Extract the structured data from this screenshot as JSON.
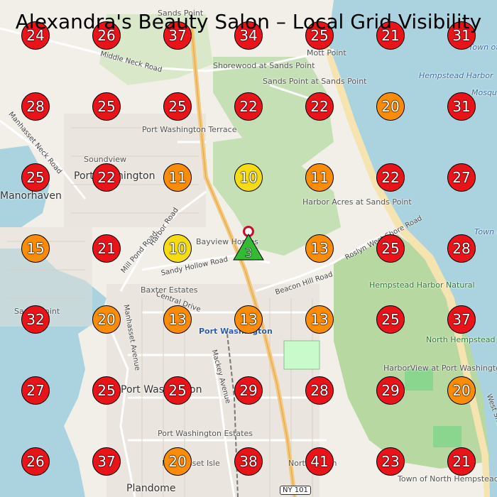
{
  "map": {
    "title": "Alexandra's Beauty Salon – Local Grid Visibility",
    "colors": {
      "red": "#e8141a",
      "orange": "#fa8c0a",
      "yellow": "#f6dc14",
      "green": "#33bb33",
      "water": "#aad3df",
      "land": "#f2efe9",
      "wood": "#add19e"
    },
    "place_labels": [
      "Sands Point",
      "Mott Point",
      "Shorewood at Sands Point",
      "Sands Point at Sands Point",
      "Port Washington Terrace",
      "Soundview",
      "Port Washington",
      "Manorhaven",
      "Harbor Acres at Sands Point",
      "Bayview Homes",
      "Baxter Estates",
      "Port Washington",
      "Port Washington",
      "Port Washington Estates",
      "Manhasset Isle",
      "Plandome",
      "North Salem",
      "Hempstead Harbor Natural",
      "HarborView at Port Washington",
      "North Hempstead Beach Park",
      "Town of North Hempstead Landfill",
      "Hempstead Harbor",
      "Town of Oyster Bay",
      "Mosquito Cove",
      "Town of Oyster Bay",
      "Sands Point"
    ],
    "road_labels": [
      "Middle Neck Road",
      "Manhasset Neck Road",
      "Mill Pond Road",
      "Harbor Road",
      "Sandy Hollow Road",
      "Beacon Hill Road",
      "Roslyn West Shore Road",
      "Mackey Avenue",
      "West Shore Road",
      "Manhasset Avenue",
      "Central Drive"
    ],
    "route_shield": "NY 101",
    "grid": [
      [
        24,
        26,
        37,
        34,
        25,
        21,
        31
      ],
      [
        28,
        25,
        25,
        22,
        22,
        20,
        31
      ],
      [
        25,
        22,
        11,
        10,
        11,
        22,
        27
      ],
      [
        15,
        21,
        10,
        3,
        13,
        25,
        28
      ],
      [
        32,
        20,
        13,
        13,
        13,
        25,
        37
      ],
      [
        27,
        25,
        25,
        29,
        28,
        29,
        20
      ],
      [
        26,
        37,
        20,
        38,
        41,
        23,
        21
      ]
    ]
  }
}
